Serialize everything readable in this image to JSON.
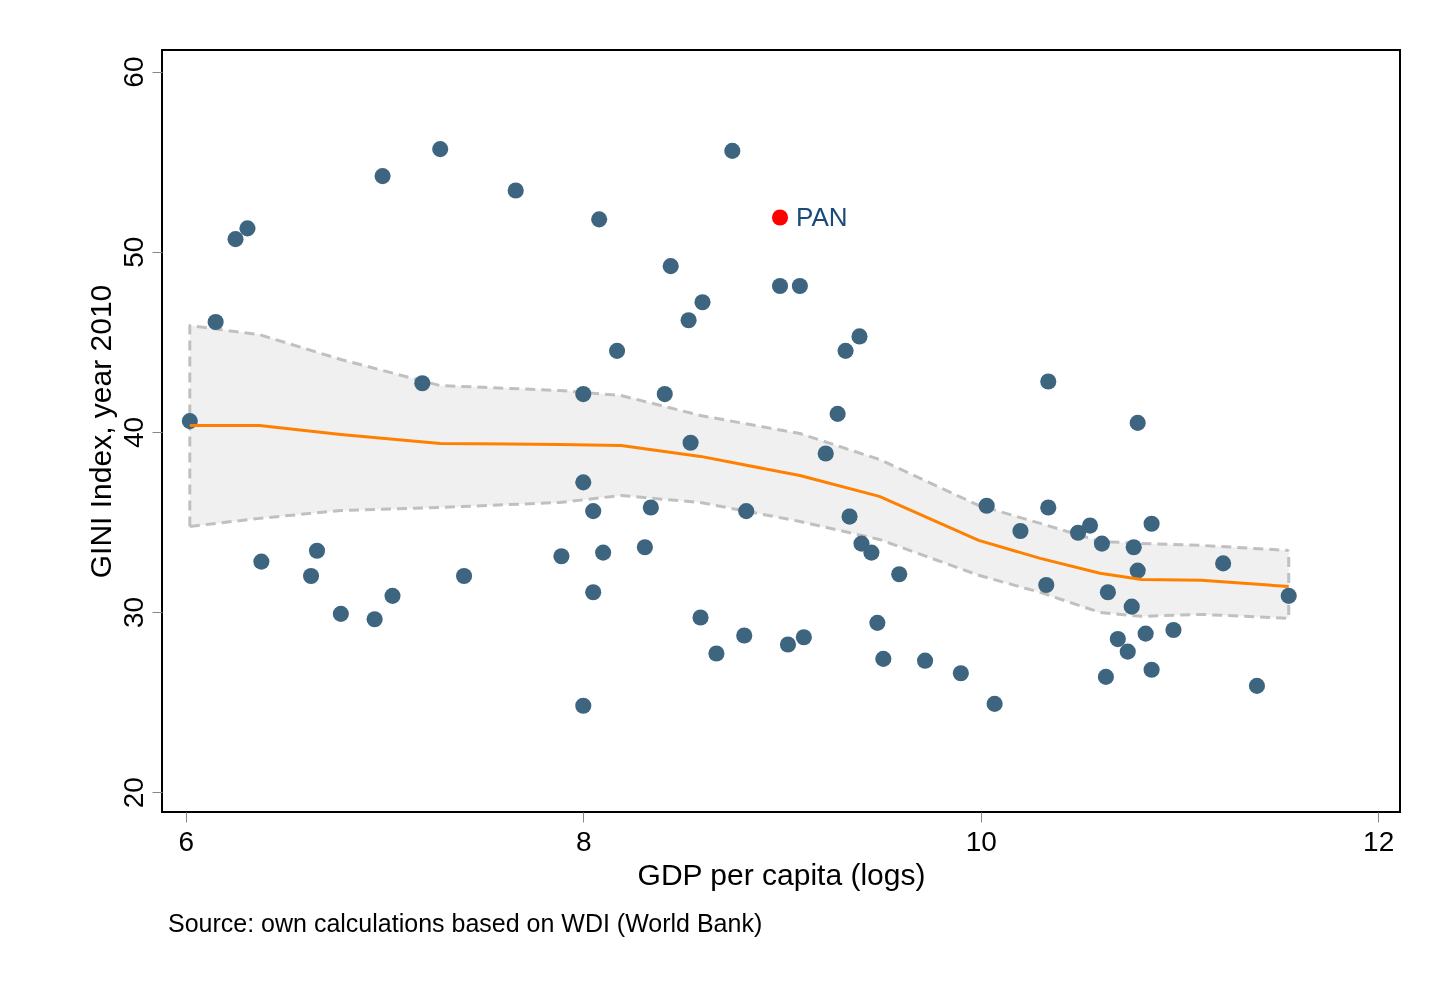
{
  "chart_data": {
    "type": "scatter",
    "xlabel": "GDP per capita (logs)",
    "ylabel": "GINI Index, year 2010",
    "annotations": [
      "Source: own calculations based on WDI (World Bank)"
    ],
    "xlim": [
      5.88,
      12.11
    ],
    "ylim": [
      18.9,
      61.2
    ],
    "xticks": [
      6,
      8,
      10,
      12
    ],
    "yticks": [
      20,
      30,
      40,
      50,
      60
    ],
    "grid": false,
    "legend": false,
    "marker": "circle",
    "series": [
      {
        "type": "scatter",
        "color": "#3d6580",
        "x": [
          6.02,
          6.15,
          6.25,
          6.31,
          6.38,
          6.63,
          6.66,
          6.78,
          6.95,
          6.99,
          7.04,
          7.19,
          7.28,
          7.4,
          7.66,
          7.89,
          8.0,
          8.0,
          8.0,
          8.05,
          8.05,
          8.08,
          8.1,
          8.17,
          8.31,
          8.34,
          8.41,
          8.44,
          8.53,
          8.54,
          8.6,
          8.59,
          8.67,
          8.75,
          8.81,
          8.82,
          8.99,
          9.03,
          9.09,
          9.11,
          9.22,
          9.28,
          9.32,
          9.34,
          9.39,
          9.4,
          9.45,
          9.48,
          9.51,
          9.59,
          9.72,
          9.9,
          10.03,
          10.07,
          10.2,
          10.33,
          10.34,
          10.34,
          10.49,
          10.55,
          10.61,
          10.64,
          10.63,
          10.69,
          10.74,
          10.76,
          10.77,
          10.79,
          10.79,
          10.83,
          10.86,
          10.86,
          10.97,
          11.22,
          11.39,
          11.55
        ],
        "values": [
          40.6,
          46.1,
          50.7,
          51.3,
          32.8,
          32.0,
          33.4,
          29.9,
          29.6,
          54.2,
          30.9,
          42.7,
          55.7,
          32.0,
          53.4,
          33.1,
          42.1,
          37.2,
          24.8,
          35.6,
          31.1,
          51.8,
          33.3,
          44.5,
          33.6,
          35.8,
          42.1,
          49.2,
          46.2,
          39.4,
          47.2,
          29.7,
          27.7,
          55.6,
          28.7,
          35.6,
          48.1,
          28.2,
          48.1,
          28.6,
          38.8,
          41.0,
          44.5,
          35.3,
          45.3,
          33.8,
          33.3,
          29.4,
          27.4,
          32.1,
          27.3,
          26.6,
          35.9,
          24.9,
          34.5,
          31.5,
          35.8,
          42.8,
          34.4,
          34.8,
          33.8,
          31.1,
          26.4,
          28.5,
          27.8,
          30.3,
          33.6,
          40.5,
          32.3,
          28.8,
          34.9,
          26.8,
          29.0,
          32.7,
          25.9,
          30.9
        ]
      },
      {
        "type": "scatter",
        "name": "PAN",
        "color": "#ff0000",
        "x": [
          8.99
        ],
        "values": [
          51.9
        ]
      },
      {
        "type": "line",
        "marker": "none",
        "color": "#ff8000",
        "x": [
          6.02,
          6.37,
          6.78,
          7.28,
          7.88,
          8.19,
          8.59,
          9.09,
          9.49,
          9.99,
          10.3,
          10.6,
          10.81,
          11.11,
          11.55
        ],
        "values": [
          40.35,
          40.35,
          39.86,
          39.36,
          39.3,
          39.25,
          38.64,
          37.58,
          36.42,
          33.98,
          32.98,
          32.15,
          31.81,
          31.76,
          31.42
        ],
        "lower": [
          34.75,
          35.2,
          35.64,
          35.81,
          36.08,
          36.47,
          36.08,
          35.03,
          34.03,
          32.04,
          31.09,
          29.98,
          29.76,
          29.87,
          29.65
        ],
        "upper": [
          45.9,
          45.4,
          44.02,
          42.57,
          42.3,
          42.02,
          40.91,
          39.91,
          38.47,
          35.92,
          34.92,
          33.92,
          33.81,
          33.7,
          33.42
        ]
      },
      {
        "type": "line",
        "marker": "none",
        "line_style": "dashed",
        "color": "#c0c0c0",
        "x": [
          6.02,
          6.02,
          6.37,
          6.78,
          7.28,
          7.88,
          8.19,
          8.59,
          9.09,
          9.49,
          9.99,
          10.3,
          10.6,
          10.81,
          11.11,
          11.55
        ],
        "values": [
          34.75,
          45.9,
          45.4,
          44.02,
          42.57,
          42.3,
          42.02,
          40.91,
          39.91,
          38.47,
          35.92,
          34.92,
          33.92,
          33.81,
          33.7,
          33.42
        ]
      },
      {
        "type": "line",
        "marker": "none",
        "line_style": "dashed",
        "color": "#c0c0c0",
        "x": [
          6.02,
          6.37,
          6.78,
          7.28,
          7.88,
          8.19,
          8.59,
          9.09,
          9.49,
          9.99,
          10.3,
          10.6,
          10.81,
          11.11,
          11.55,
          11.55
        ],
        "values": [
          34.75,
          35.2,
          35.64,
          35.81,
          36.08,
          36.47,
          36.08,
          35.03,
          34.03,
          32.04,
          31.09,
          29.98,
          29.76,
          29.87,
          29.65,
          33.42
        ]
      }
    ]
  }
}
